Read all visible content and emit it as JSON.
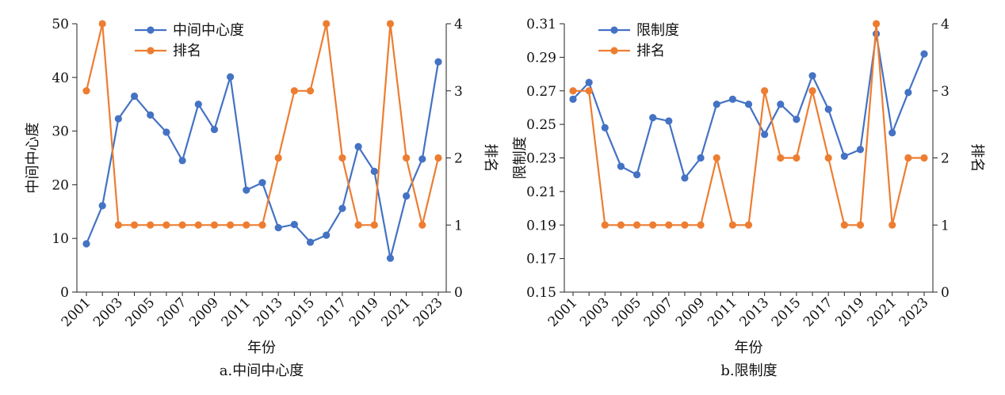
{
  "chart_data": [
    {
      "type": "line",
      "caption": "a.中间中心度",
      "xlabel": "年份",
      "ylabel_left": "中间中心度",
      "ylabel_right": "排名",
      "x": [
        2001,
        2002,
        2003,
        2004,
        2005,
        2006,
        2007,
        2008,
        2009,
        2010,
        2011,
        2012,
        2013,
        2014,
        2015,
        2016,
        2017,
        2018,
        2019,
        2020,
        2021,
        2022,
        2023
      ],
      "x_tick_labels": [
        "2001",
        "2003",
        "2005",
        "2007",
        "2009",
        "2011",
        "2013",
        "2015",
        "2017",
        "2019",
        "2021",
        "2023"
      ],
      "ylim_left": [
        0,
        50
      ],
      "yticks_left": [
        "0",
        "10",
        "20",
        "30",
        "40",
        "50"
      ],
      "ylim_right": [
        0,
        4
      ],
      "yticks_right": [
        "0",
        "1",
        "2",
        "3",
        "4"
      ],
      "series": [
        {
          "name": "中间中心度",
          "axis": "left",
          "color": "#4472c4",
          "values": [
            9.0,
            16.1,
            32.3,
            36.5,
            33.0,
            29.8,
            24.5,
            35.0,
            30.3,
            40.1,
            19.0,
            20.4,
            12.0,
            12.6,
            9.3,
            10.6,
            15.6,
            27.1,
            22.5,
            6.3,
            17.9,
            24.8,
            42.9
          ]
        },
        {
          "name": "排名",
          "axis": "right",
          "color": "#ed7d31",
          "values": [
            3,
            4,
            1,
            1,
            1,
            1,
            1,
            1,
            1,
            1,
            1,
            1,
            2,
            3,
            3,
            4,
            2,
            1,
            1,
            4,
            2,
            1,
            2
          ]
        }
      ]
    },
    {
      "type": "line",
      "caption": "b.限制度",
      "xlabel": "年份",
      "ylabel_left": "限制度",
      "ylabel_right": "排名",
      "x": [
        2001,
        2002,
        2003,
        2004,
        2005,
        2006,
        2007,
        2008,
        2009,
        2010,
        2011,
        2012,
        2013,
        2014,
        2015,
        2016,
        2017,
        2018,
        2019,
        2020,
        2021,
        2022,
        2023
      ],
      "x_tick_labels": [
        "2001",
        "2003",
        "2005",
        "2007",
        "2009",
        "2011",
        "2013",
        "2015",
        "2017",
        "2019",
        "2021",
        "2023"
      ],
      "ylim_left": [
        0.15,
        0.31
      ],
      "yticks_left": [
        "0.15",
        "0.17",
        "0.19",
        "0.21",
        "0.23",
        "0.25",
        "0.27",
        "0.29",
        "0.31"
      ],
      "ylim_right": [
        0,
        4
      ],
      "yticks_right": [
        "0",
        "1",
        "2",
        "3",
        "4"
      ],
      "series": [
        {
          "name": "限制度",
          "axis": "left",
          "color": "#4472c4",
          "values": [
            0.265,
            0.275,
            0.248,
            0.225,
            0.22,
            0.254,
            0.252,
            0.218,
            0.23,
            0.262,
            0.265,
            0.262,
            0.244,
            0.262,
            0.253,
            0.279,
            0.259,
            0.231,
            0.235,
            0.304,
            0.245,
            0.269,
            0.292
          ]
        },
        {
          "name": "排名",
          "axis": "right",
          "color": "#ed7d31",
          "values": [
            3,
            3,
            1,
            1,
            1,
            1,
            1,
            1,
            1,
            2,
            1,
            1,
            3,
            2,
            2,
            3,
            2,
            1,
            1,
            4,
            1,
            2,
            2
          ]
        }
      ]
    }
  ]
}
